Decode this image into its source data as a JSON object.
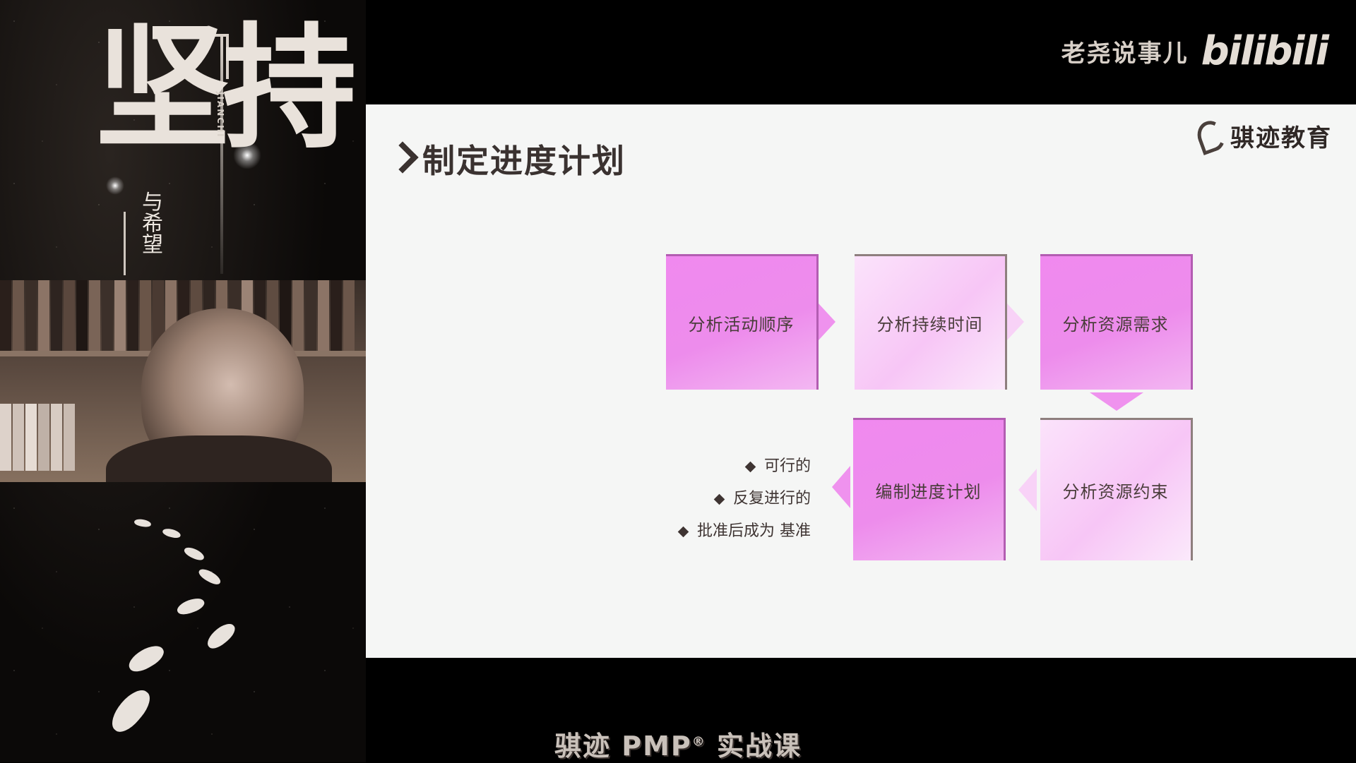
{
  "header": {
    "channel_name": "老尧说事儿",
    "platform_logo": "bilibili"
  },
  "poster": {
    "title": "坚持",
    "pinyin": "JIANCHI",
    "subtitle": "与希望"
  },
  "slide": {
    "title": "制定进度计划",
    "brand": "骐迹教育",
    "process": {
      "step1": "分析活动顺序",
      "step2": "分析持续时间",
      "step3": "分析资源需求",
      "step4": "分析资源约束",
      "step5": "编制进度计划"
    },
    "bullets": [
      "可行的",
      "反复进行的",
      "批准后成为 基准"
    ]
  },
  "caption": {
    "main": "骐迹 PMP",
    "reg": "®",
    "suffix": " 实战课"
  },
  "colors": {
    "box_solid": "#f089ef",
    "box_light": "#f7c6f6",
    "text_dark": "#3a3230"
  }
}
